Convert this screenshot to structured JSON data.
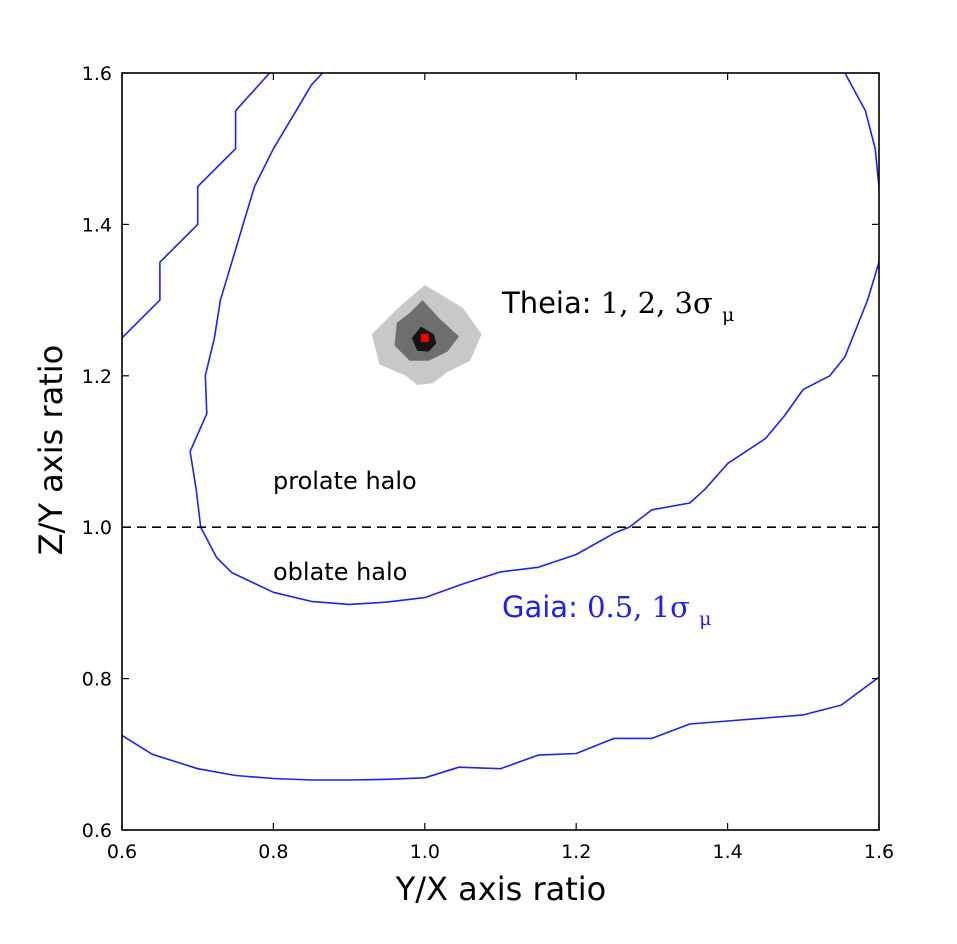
{
  "chart_data": {
    "type": "line",
    "xlabel": "Y/X axis ratio",
    "ylabel": "Z/Y axis ratio",
    "xlim": [
      0.6,
      1.6
    ],
    "ylim": [
      0.6,
      1.6
    ],
    "xticks": [
      "0.6",
      "0.8",
      "1.0",
      "1.2",
      "1.4",
      "1.6"
    ],
    "yticks": [
      "0.6",
      "0.8",
      "1.0",
      "1.2",
      "1.4",
      "1.6"
    ],
    "grid": false,
    "reference_line": {
      "y": 1.0,
      "style": "dashed",
      "color": "#000000"
    },
    "colors": {
      "gaia": "#2020f0",
      "theia_3sigma": "#c8c8c8",
      "theia_2sigma": "#6e6e6e",
      "theia_1sigma": "#141414",
      "truth_marker": "#ff0000"
    },
    "series": [
      {
        "points": [
          [
            0.6,
            1.25
          ],
          [
            0.65,
            1.3
          ],
          [
            0.65,
            1.35
          ],
          [
            0.7,
            1.4
          ],
          [
            0.7,
            1.45
          ],
          [
            0.75,
            1.5
          ],
          [
            0.75,
            1.55
          ],
          [
            0.795,
            1.6
          ]
        ]
      },
      {
        "points": [
          [
            0.6,
            0.725
          ],
          [
            0.64,
            0.7
          ],
          [
            0.7,
            0.681
          ],
          [
            0.75,
            0.672
          ],
          [
            0.8,
            0.668
          ],
          [
            0.85,
            0.666
          ],
          [
            0.9,
            0.666
          ],
          [
            0.95,
            0.667
          ],
          [
            1.0,
            0.669
          ],
          [
            1.045,
            0.683
          ],
          [
            1.1,
            0.681
          ],
          [
            1.15,
            0.699
          ],
          [
            1.2,
            0.701
          ],
          [
            1.25,
            0.721
          ],
          [
            1.3,
            0.721
          ],
          [
            1.35,
            0.74
          ],
          [
            1.4,
            0.744
          ],
          [
            1.45,
            0.748
          ],
          [
            1.5,
            0.752
          ],
          [
            1.55,
            0.765
          ],
          [
            1.6,
            0.802
          ]
        ]
      },
      {
        "points": [
          [
            0.865,
            1.6
          ],
          [
            0.85,
            1.584
          ],
          [
            0.83,
            1.55
          ],
          [
            0.8,
            1.5
          ],
          [
            0.775,
            1.45
          ],
          [
            0.76,
            1.4
          ],
          [
            0.745,
            1.35
          ],
          [
            0.73,
            1.3
          ],
          [
            0.722,
            1.25
          ],
          [
            0.71,
            1.2
          ],
          [
            0.712,
            1.15
          ],
          [
            0.69,
            1.1
          ],
          [
            0.698,
            1.05
          ],
          [
            0.704,
            1.0
          ],
          [
            0.725,
            0.96
          ],
          [
            0.745,
            0.94
          ],
          [
            0.8,
            0.914
          ],
          [
            0.85,
            0.902
          ],
          [
            0.9,
            0.898
          ],
          [
            0.95,
            0.901
          ],
          [
            1.0,
            0.907
          ],
          [
            1.05,
            0.925
          ],
          [
            1.1,
            0.941
          ],
          [
            1.15,
            0.947
          ],
          [
            1.2,
            0.964
          ],
          [
            1.25,
            0.992
          ],
          [
            1.27,
            1.0
          ],
          [
            1.3,
            1.023
          ],
          [
            1.35,
            1.032
          ],
          [
            1.37,
            1.05
          ],
          [
            1.4,
            1.084
          ],
          [
            1.45,
            1.117
          ],
          [
            1.475,
            1.147
          ],
          [
            1.5,
            1.182
          ],
          [
            1.535,
            1.2
          ],
          [
            1.555,
            1.225
          ],
          [
            1.585,
            1.3
          ],
          [
            1.6,
            1.35
          ],
          [
            1.605,
            1.4
          ],
          [
            1.6,
            1.45
          ],
          [
            1.595,
            1.5
          ],
          [
            1.582,
            1.55
          ],
          [
            1.555,
            1.6
          ]
        ]
      }
    ],
    "theia_contours": [
      {
        "level": "3sigma",
        "color": "#c8c8c8",
        "points": [
          [
            1.0,
            1.32
          ],
          [
            1.05,
            1.29
          ],
          [
            1.075,
            1.255
          ],
          [
            1.06,
            1.22
          ],
          [
            1.03,
            1.205
          ],
          [
            1.01,
            1.19
          ],
          [
            0.99,
            1.188
          ],
          [
            0.975,
            1.2
          ],
          [
            0.94,
            1.215
          ],
          [
            0.93,
            1.255
          ],
          [
            0.965,
            1.29
          ]
        ]
      },
      {
        "level": "2sigma",
        "color": "#6e6e6e",
        "points": [
          [
            0.997,
            1.3
          ],
          [
            1.02,
            1.275
          ],
          [
            1.045,
            1.252
          ],
          [
            1.03,
            1.232
          ],
          [
            1.005,
            1.22
          ],
          [
            0.98,
            1.22
          ],
          [
            0.96,
            1.24
          ],
          [
            0.963,
            1.27
          ],
          [
            0.98,
            1.283
          ]
        ]
      },
      {
        "level": "1sigma",
        "color": "#141414",
        "points": [
          [
            0.995,
            1.265
          ],
          [
            1.012,
            1.255
          ],
          [
            1.015,
            1.243
          ],
          [
            1.005,
            1.232
          ],
          [
            0.99,
            1.233
          ],
          [
            0.983,
            1.25
          ]
        ]
      }
    ],
    "truth_point": {
      "x": 1.0,
      "y": 1.25
    },
    "annotations": {
      "theia_prefix": "Theia:",
      "theia_levels": "1, 2, 3σ",
      "gaia_prefix": "Gaia:",
      "gaia_levels": "0.5, 1σ",
      "mu_subscript": "μ",
      "prolate": "prolate halo",
      "oblate": "oblate halo"
    }
  }
}
